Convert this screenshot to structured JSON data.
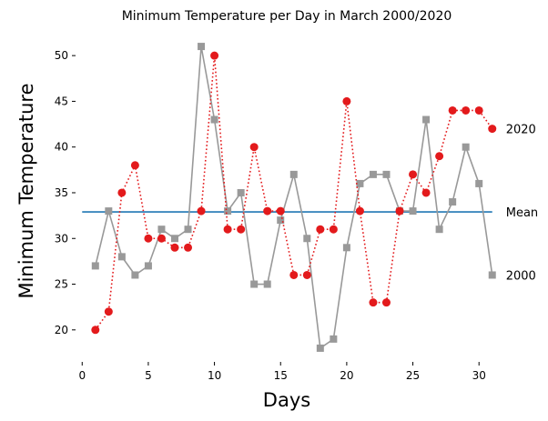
{
  "chart_data": {
    "type": "line",
    "title": "Minimum Temperature per Day in March 2000/2020",
    "xlabel": "Days",
    "ylabel": "Minimum Temperature",
    "xlim": [
      -0.5,
      31.5
    ],
    "ylim": [
      16.5,
      52.5
    ],
    "x_ticks": [
      0,
      5,
      10,
      15,
      20,
      25,
      30
    ],
    "y_ticks": [
      20,
      25,
      30,
      35,
      40,
      45,
      50
    ],
    "x": [
      1,
      2,
      3,
      4,
      5,
      6,
      7,
      8,
      9,
      10,
      11,
      12,
      13,
      14,
      15,
      16,
      17,
      18,
      19,
      20,
      21,
      22,
      23,
      24,
      25,
      26,
      27,
      28,
      29,
      30,
      31
    ],
    "series": [
      {
        "name": "2000",
        "color": "#999999",
        "line_style": "solid",
        "marker": "square",
        "values": [
          27,
          33,
          28,
          26,
          27,
          31,
          30,
          31,
          51,
          43,
          33,
          35,
          25,
          25,
          32,
          37,
          30,
          18,
          19,
          29,
          36,
          37,
          37,
          33,
          33,
          43,
          31,
          34,
          40,
          36,
          26
        ]
      },
      {
        "name": "2020",
        "color": "#e31a1c",
        "line_style": "dotted",
        "marker": "circle",
        "values": [
          20,
          22,
          35,
          38,
          30,
          30,
          29,
          29,
          33,
          50,
          31,
          31,
          40,
          33,
          33,
          26,
          26,
          31,
          31,
          45,
          33,
          23,
          23,
          33,
          37,
          35,
          39,
          44,
          44,
          44,
          42
        ]
      }
    ],
    "mean_line": {
      "name": "Mean",
      "value": 32.9,
      "color": "#1f77b4",
      "x_range": [
        0,
        31
      ]
    },
    "grid": false,
    "legend": "none"
  }
}
